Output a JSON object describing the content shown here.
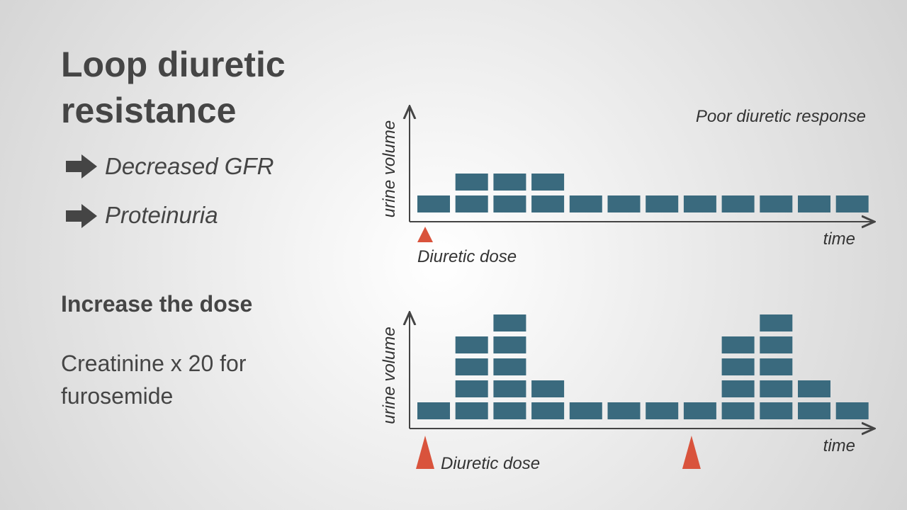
{
  "title": [
    "Loop diuretic",
    "resistance"
  ],
  "bullets": [
    "Decreased GFR",
    "Proteinuria"
  ],
  "subheading": "Increase the dose",
  "note": [
    "Creatinine x 20 for",
    "furosemide"
  ],
  "diagrams": [
    {
      "y_label": "urine volume",
      "x_label": "time",
      "annotation": "Poor diuretic response",
      "dose_label": "Diuretic dose",
      "blocks": [
        1,
        2,
        2,
        2,
        1,
        1,
        1,
        1,
        1,
        1,
        1,
        1
      ],
      "doses": [
        0
      ],
      "block_color": "#3a6a7e",
      "dose_color": "#d9533c"
    },
    {
      "y_label": "urine volume",
      "x_label": "time",
      "dose_label": "Diuretic dose",
      "blocks": [
        1,
        4,
        5,
        2,
        1,
        1,
        1,
        1,
        4,
        5,
        2,
        1
      ],
      "doses": [
        0,
        7
      ],
      "block_color": "#3a6a7e",
      "dose_color": "#d9533c"
    }
  ]
}
